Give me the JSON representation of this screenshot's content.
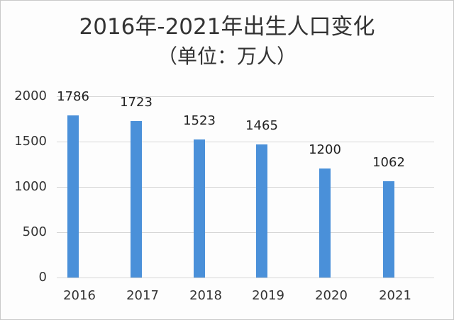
{
  "chart_data": {
    "type": "bar",
    "title": "2016年-2021年出生人口变化",
    "subtitle": "（单位：万人）",
    "xlabel": "",
    "ylabel": "",
    "categories": [
      "2016",
      "2017",
      "2018",
      "2019",
      "2020",
      "2021"
    ],
    "values": [
      1786,
      1723,
      1523,
      1465,
      1200,
      1062
    ],
    "data_labels": [
      "1786",
      "1723",
      "1523",
      "1465",
      "1200",
      "1062"
    ],
    "yticks": [
      "0",
      "500",
      "1000",
      "1500",
      "2000"
    ],
    "ylim": [
      0,
      2000
    ],
    "grid": true,
    "legend": null,
    "bar_color": "#4a90d9"
  }
}
